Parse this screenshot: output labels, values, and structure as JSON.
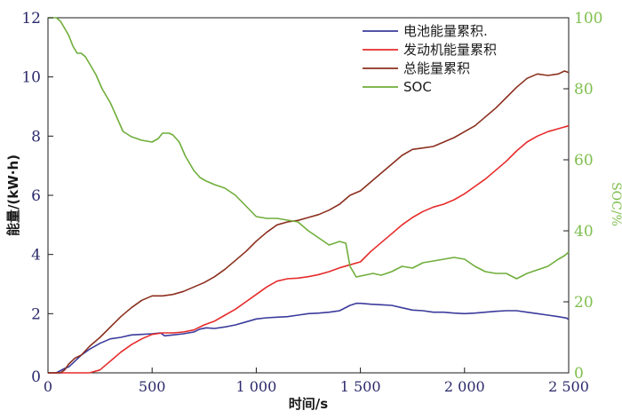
{
  "chart_data": {
    "type": "line",
    "xlabel": "时间/s",
    "ylabel_left": "能量/(kW·h)",
    "ylabel_right": "SOC/%",
    "xlim": [
      0,
      2500
    ],
    "ylim_left": [
      0,
      12
    ],
    "ylim_right": [
      0,
      100
    ],
    "x_ticks": [
      {
        "value": 0,
        "label": "0"
      },
      {
        "value": 500,
        "label": "500"
      },
      {
        "value": 1000,
        "label": "1 000"
      },
      {
        "value": 1500,
        "label": "1 500"
      },
      {
        "value": 2000,
        "label": "2 000"
      },
      {
        "value": 2500,
        "label": "2 500"
      }
    ],
    "y_left_ticks": [
      {
        "value": 2,
        "label": "2"
      },
      {
        "value": 4,
        "label": "4"
      },
      {
        "value": 6,
        "label": "6"
      },
      {
        "value": 8,
        "label": "8"
      },
      {
        "value": 10,
        "label": "10"
      },
      {
        "value": 12,
        "label": "12"
      }
    ],
    "y_right_ticks": [
      {
        "value": 0,
        "label": "0"
      },
      {
        "value": 20,
        "label": "20"
      },
      {
        "value": 40,
        "label": "40"
      },
      {
        "value": 60,
        "label": "60"
      },
      {
        "value": 80,
        "label": "80"
      },
      {
        "value": 100,
        "label": "100"
      }
    ],
    "legend_position": "top-right",
    "grid": false,
    "series": [
      {
        "name": "电池能量累积.",
        "axis": "left",
        "color": "#3b3b9c",
        "points": [
          [
            0,
            0
          ],
          [
            40,
            0
          ],
          [
            80,
            0.15
          ],
          [
            100,
            0.2
          ],
          [
            130,
            0.4
          ],
          [
            160,
            0.6
          ],
          [
            200,
            0.8
          ],
          [
            250,
            1.0
          ],
          [
            300,
            1.15
          ],
          [
            350,
            1.2
          ],
          [
            400,
            1.28
          ],
          [
            450,
            1.3
          ],
          [
            500,
            1.32
          ],
          [
            540,
            1.35
          ],
          [
            560,
            1.25
          ],
          [
            600,
            1.28
          ],
          [
            650,
            1.32
          ],
          [
            700,
            1.38
          ],
          [
            730,
            1.48
          ],
          [
            760,
            1.52
          ],
          [
            800,
            1.5
          ],
          [
            850,
            1.55
          ],
          [
            900,
            1.62
          ],
          [
            950,
            1.72
          ],
          [
            1000,
            1.82
          ],
          [
            1050,
            1.86
          ],
          [
            1100,
            1.88
          ],
          [
            1150,
            1.9
          ],
          [
            1200,
            1.95
          ],
          [
            1250,
            2.0
          ],
          [
            1300,
            2.02
          ],
          [
            1350,
            2.05
          ],
          [
            1400,
            2.1
          ],
          [
            1450,
            2.28
          ],
          [
            1480,
            2.35
          ],
          [
            1500,
            2.35
          ],
          [
            1550,
            2.32
          ],
          [
            1600,
            2.3
          ],
          [
            1650,
            2.28
          ],
          [
            1700,
            2.2
          ],
          [
            1750,
            2.12
          ],
          [
            1800,
            2.1
          ],
          [
            1850,
            2.05
          ],
          [
            1900,
            2.05
          ],
          [
            1950,
            2.02
          ],
          [
            2000,
            2.0
          ],
          [
            2050,
            2.02
          ],
          [
            2100,
            2.05
          ],
          [
            2150,
            2.08
          ],
          [
            2200,
            2.1
          ],
          [
            2250,
            2.1
          ],
          [
            2300,
            2.05
          ],
          [
            2350,
            2.0
          ],
          [
            2400,
            1.95
          ],
          [
            2450,
            1.9
          ],
          [
            2490,
            1.85
          ],
          [
            2500,
            1.8
          ]
        ]
      },
      {
        "name": "发动机能量累积",
        "axis": "left",
        "color": "#e62b2b",
        "points": [
          [
            0,
            0
          ],
          [
            200,
            0
          ],
          [
            250,
            0.1
          ],
          [
            300,
            0.4
          ],
          [
            350,
            0.7
          ],
          [
            400,
            0.95
          ],
          [
            450,
            1.15
          ],
          [
            500,
            1.3
          ],
          [
            550,
            1.35
          ],
          [
            600,
            1.35
          ],
          [
            650,
            1.38
          ],
          [
            700,
            1.45
          ],
          [
            750,
            1.62
          ],
          [
            800,
            1.75
          ],
          [
            850,
            1.95
          ],
          [
            900,
            2.15
          ],
          [
            950,
            2.4
          ],
          [
            1000,
            2.65
          ],
          [
            1050,
            2.9
          ],
          [
            1100,
            3.1
          ],
          [
            1150,
            3.18
          ],
          [
            1200,
            3.2
          ],
          [
            1250,
            3.25
          ],
          [
            1300,
            3.32
          ],
          [
            1350,
            3.42
          ],
          [
            1400,
            3.55
          ],
          [
            1450,
            3.65
          ],
          [
            1500,
            3.75
          ],
          [
            1550,
            4.1
          ],
          [
            1600,
            4.4
          ],
          [
            1650,
            4.7
          ],
          [
            1700,
            5.0
          ],
          [
            1750,
            5.25
          ],
          [
            1800,
            5.45
          ],
          [
            1850,
            5.6
          ],
          [
            1900,
            5.7
          ],
          [
            1950,
            5.85
          ],
          [
            2000,
            6.05
          ],
          [
            2050,
            6.3
          ],
          [
            2100,
            6.55
          ],
          [
            2150,
            6.85
          ],
          [
            2200,
            7.15
          ],
          [
            2250,
            7.5
          ],
          [
            2300,
            7.8
          ],
          [
            2350,
            8.0
          ],
          [
            2400,
            8.15
          ],
          [
            2450,
            8.25
          ],
          [
            2500,
            8.35
          ]
        ]
      },
      {
        "name": "总能量累积",
        "axis": "left",
        "color": "#8b2f1e",
        "points": [
          [
            0,
            0
          ],
          [
            60,
            0
          ],
          [
            80,
            0.1
          ],
          [
            100,
            0.3
          ],
          [
            130,
            0.5
          ],
          [
            160,
            0.6
          ],
          [
            200,
            0.9
          ],
          [
            250,
            1.2
          ],
          [
            300,
            1.55
          ],
          [
            350,
            1.9
          ],
          [
            400,
            2.2
          ],
          [
            450,
            2.45
          ],
          [
            500,
            2.6
          ],
          [
            550,
            2.6
          ],
          [
            600,
            2.65
          ],
          [
            650,
            2.75
          ],
          [
            700,
            2.9
          ],
          [
            750,
            3.05
          ],
          [
            800,
            3.25
          ],
          [
            850,
            3.5
          ],
          [
            900,
            3.8
          ],
          [
            950,
            4.1
          ],
          [
            1000,
            4.45
          ],
          [
            1050,
            4.75
          ],
          [
            1100,
            5.0
          ],
          [
            1150,
            5.1
          ],
          [
            1200,
            5.15
          ],
          [
            1250,
            5.25
          ],
          [
            1300,
            5.35
          ],
          [
            1350,
            5.5
          ],
          [
            1400,
            5.7
          ],
          [
            1450,
            6.0
          ],
          [
            1500,
            6.15
          ],
          [
            1550,
            6.45
          ],
          [
            1600,
            6.75
          ],
          [
            1650,
            7.05
          ],
          [
            1700,
            7.35
          ],
          [
            1750,
            7.55
          ],
          [
            1800,
            7.6
          ],
          [
            1850,
            7.65
          ],
          [
            1900,
            7.8
          ],
          [
            1950,
            7.95
          ],
          [
            2000,
            8.15
          ],
          [
            2050,
            8.35
          ],
          [
            2100,
            8.65
          ],
          [
            2150,
            8.95
          ],
          [
            2200,
            9.3
          ],
          [
            2250,
            9.65
          ],
          [
            2300,
            9.95
          ],
          [
            2350,
            10.1
          ],
          [
            2400,
            10.05
          ],
          [
            2450,
            10.1
          ],
          [
            2480,
            10.2
          ],
          [
            2500,
            10.15
          ]
        ]
      },
      {
        "name": "SOC",
        "axis": "right",
        "color": "#6fae3a",
        "points": [
          [
            0,
            100
          ],
          [
            40,
            100
          ],
          [
            60,
            99
          ],
          [
            80,
            97
          ],
          [
            100,
            95
          ],
          [
            120,
            92
          ],
          [
            140,
            90
          ],
          [
            160,
            90
          ],
          [
            180,
            89
          ],
          [
            200,
            87
          ],
          [
            230,
            84
          ],
          [
            260,
            80
          ],
          [
            300,
            76
          ],
          [
            330,
            72
          ],
          [
            360,
            68
          ],
          [
            400,
            66.5
          ],
          [
            450,
            65.5
          ],
          [
            500,
            65
          ],
          [
            530,
            66
          ],
          [
            550,
            67.5
          ],
          [
            580,
            67.5
          ],
          [
            600,
            67
          ],
          [
            630,
            65
          ],
          [
            660,
            61
          ],
          [
            700,
            57
          ],
          [
            730,
            55
          ],
          [
            760,
            54
          ],
          [
            800,
            53
          ],
          [
            850,
            52
          ],
          [
            900,
            50
          ],
          [
            950,
            47
          ],
          [
            1000,
            44
          ],
          [
            1050,
            43.5
          ],
          [
            1100,
            43.5
          ],
          [
            1150,
            43
          ],
          [
            1200,
            42.5
          ],
          [
            1250,
            40
          ],
          [
            1300,
            38
          ],
          [
            1350,
            36
          ],
          [
            1400,
            37
          ],
          [
            1430,
            36.5
          ],
          [
            1450,
            30
          ],
          [
            1480,
            27
          ],
          [
            1520,
            27.5
          ],
          [
            1560,
            28
          ],
          [
            1600,
            27.5
          ],
          [
            1650,
            28.5
          ],
          [
            1700,
            30
          ],
          [
            1750,
            29.5
          ],
          [
            1800,
            31
          ],
          [
            1850,
            31.5
          ],
          [
            1900,
            32
          ],
          [
            1950,
            32.5
          ],
          [
            2000,
            32
          ],
          [
            2050,
            30
          ],
          [
            2100,
            28.5
          ],
          [
            2150,
            28
          ],
          [
            2200,
            28
          ],
          [
            2250,
            26.5
          ],
          [
            2300,
            28
          ],
          [
            2350,
            29
          ],
          [
            2400,
            30
          ],
          [
            2450,
            32
          ],
          [
            2480,
            33
          ],
          [
            2500,
            34
          ]
        ]
      }
    ]
  }
}
